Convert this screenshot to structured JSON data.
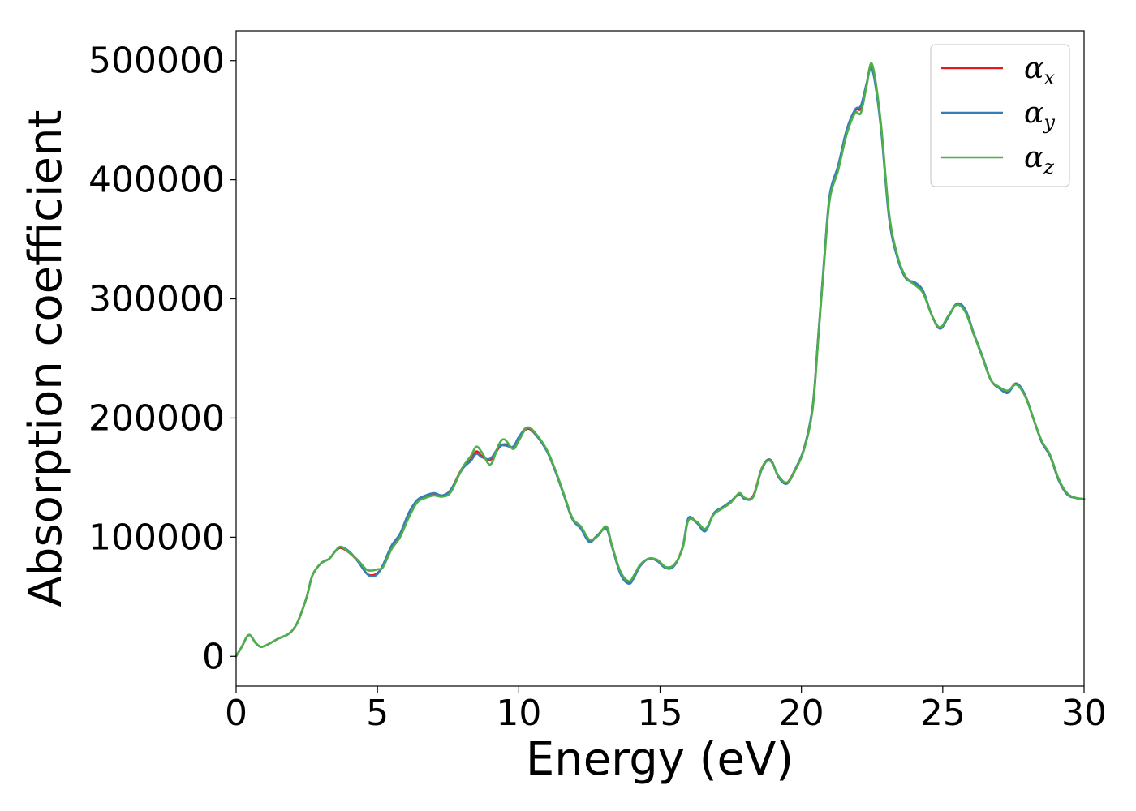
{
  "chart_data": {
    "type": "line",
    "title": "",
    "xlabel": "Energy (eV)",
    "ylabel": "Absorption coefficient",
    "xlim": [
      0,
      30
    ],
    "ylim": [
      -25000,
      525000
    ],
    "xticks": [
      0,
      5,
      10,
      15,
      20,
      25,
      30
    ],
    "xtick_labels": [
      "0",
      "5",
      "10",
      "15",
      "20",
      "25",
      "30"
    ],
    "yticks": [
      0,
      100000,
      200000,
      300000,
      400000,
      500000
    ],
    "ytick_labels": [
      "0",
      "100000",
      "200000",
      "300000",
      "400000",
      "500000"
    ],
    "grid": false,
    "legend_position": "top-right",
    "series": [
      {
        "name": "α_x",
        "color": "#e41a1c",
        "x": [
          0,
          0.2,
          0.45,
          0.7,
          0.9,
          1.2,
          1.5,
          1.8,
          2.0,
          2.2,
          2.5,
          2.7,
          3.0,
          3.3,
          3.5,
          3.7,
          4.0,
          4.3,
          4.6,
          4.8,
          5.0,
          5.2,
          5.5,
          5.8,
          6.1,
          6.4,
          6.7,
          7.0,
          7.3,
          7.6,
          8.0,
          8.3,
          8.5,
          8.7,
          9.0,
          9.3,
          9.5,
          9.8,
          10.0,
          10.3,
          10.6,
          11.0,
          11.3,
          11.6,
          11.9,
          12.2,
          12.5,
          12.8,
          13.1,
          13.3,
          13.6,
          13.9,
          14.1,
          14.3,
          14.6,
          14.9,
          15.2,
          15.5,
          15.8,
          16.0,
          16.3,
          16.6,
          16.9,
          17.2,
          17.5,
          17.8,
          18.0,
          18.3,
          18.6,
          18.9,
          19.2,
          19.5,
          19.8,
          20.1,
          20.4,
          20.6,
          20.8,
          21.0,
          21.3,
          21.6,
          21.9,
          22.1,
          22.3,
          22.5,
          22.8,
          23.1,
          23.4,
          23.7,
          24.0,
          24.3,
          24.6,
          24.9,
          25.2,
          25.5,
          25.8,
          26.1,
          26.4,
          26.7,
          27.0,
          27.3,
          27.6,
          27.9,
          28.2,
          28.5,
          28.8,
          29.1,
          29.4,
          29.7,
          30.0
        ],
        "values": [
          0,
          8000,
          18000,
          11000,
          8000,
          11000,
          15000,
          18000,
          22000,
          30000,
          50000,
          68000,
          78000,
          82000,
          88000,
          91000,
          87000,
          80000,
          70000,
          68000,
          70000,
          76000,
          92000,
          102000,
          118000,
          130000,
          134000,
          136000,
          135000,
          140000,
          158000,
          165000,
          172000,
          168000,
          165000,
          175000,
          178000,
          175000,
          183000,
          191000,
          186000,
          172000,
          155000,
          135000,
          115000,
          108000,
          97000,
          102000,
          108000,
          92000,
          70000,
          62000,
          68000,
          76000,
          82000,
          80000,
          74000,
          76000,
          92000,
          115000,
          112000,
          106000,
          120000,
          125000,
          130000,
          136000,
          132000,
          135000,
          158000,
          165000,
          150000,
          146000,
          158000,
          175000,
          210000,
          270000,
          330000,
          385000,
          410000,
          440000,
          458000,
          460000,
          480000,
          495000,
          448000,
          370000,
          335000,
          318000,
          313000,
          306000,
          287000,
          275000,
          285000,
          296000,
          290000,
          270000,
          252000,
          232000,
          225000,
          222000,
          229000,
          220000,
          200000,
          180000,
          168000,
          148000,
          136000,
          133000,
          132000
        ]
      },
      {
        "name": "α_y",
        "color": "#377eb8",
        "x": [
          0,
          0.2,
          0.45,
          0.7,
          0.9,
          1.2,
          1.5,
          1.8,
          2.0,
          2.2,
          2.5,
          2.7,
          3.0,
          3.3,
          3.5,
          3.7,
          4.0,
          4.3,
          4.6,
          4.8,
          5.0,
          5.2,
          5.5,
          5.8,
          6.1,
          6.4,
          6.7,
          7.0,
          7.3,
          7.6,
          8.0,
          8.3,
          8.5,
          8.7,
          9.0,
          9.3,
          9.5,
          9.8,
          10.0,
          10.3,
          10.6,
          11.0,
          11.3,
          11.6,
          11.9,
          12.2,
          12.5,
          12.8,
          13.1,
          13.3,
          13.6,
          13.9,
          14.1,
          14.3,
          14.6,
          14.9,
          15.2,
          15.5,
          15.8,
          16.0,
          16.3,
          16.6,
          16.9,
          17.2,
          17.5,
          17.8,
          18.0,
          18.3,
          18.6,
          18.9,
          19.2,
          19.5,
          19.8,
          20.1,
          20.4,
          20.6,
          20.8,
          21.0,
          21.3,
          21.6,
          21.9,
          22.1,
          22.3,
          22.5,
          22.8,
          23.1,
          23.4,
          23.7,
          24.0,
          24.3,
          24.6,
          24.9,
          25.2,
          25.5,
          25.8,
          26.1,
          26.4,
          26.7,
          27.0,
          27.3,
          27.6,
          27.9,
          28.2,
          28.5,
          28.8,
          29.1,
          29.4,
          29.7,
          30.0
        ],
        "values": [
          0,
          8000,
          18000,
          11000,
          8000,
          11000,
          15000,
          18000,
          22000,
          30000,
          50000,
          68000,
          78000,
          82000,
          88000,
          92000,
          88000,
          80000,
          70000,
          67000,
          69000,
          77000,
          93000,
          103000,
          120000,
          131000,
          135000,
          137000,
          135000,
          140000,
          157000,
          164000,
          170000,
          167000,
          166000,
          176000,
          177000,
          176000,
          184000,
          192000,
          186000,
          172000,
          155000,
          135000,
          115000,
          107000,
          96000,
          102000,
          107000,
          92000,
          69000,
          61000,
          67000,
          76000,
          82000,
          80000,
          74000,
          76000,
          92000,
          116000,
          112000,
          105000,
          120000,
          125000,
          130000,
          136000,
          132000,
          134000,
          157000,
          165000,
          150000,
          145000,
          158000,
          175000,
          210000,
          270000,
          332000,
          387000,
          412000,
          442000,
          459000,
          462000,
          480000,
          493000,
          446000,
          368000,
          334000,
          317000,
          314000,
          307000,
          287000,
          275000,
          285000,
          296000,
          291000,
          271000,
          252000,
          232000,
          225000,
          221000,
          229000,
          220000,
          200000,
          180000,
          168000,
          148000,
          136000,
          133000,
          132000
        ]
      },
      {
        "name": "α_z",
        "color": "#4daf4a",
        "x": [
          0,
          0.2,
          0.45,
          0.7,
          0.9,
          1.2,
          1.5,
          1.8,
          2.0,
          2.2,
          2.5,
          2.7,
          3.0,
          3.3,
          3.5,
          3.7,
          4.0,
          4.3,
          4.6,
          4.8,
          5.0,
          5.2,
          5.5,
          5.8,
          6.1,
          6.4,
          6.7,
          7.0,
          7.3,
          7.6,
          8.0,
          8.3,
          8.5,
          8.7,
          9.0,
          9.3,
          9.5,
          9.8,
          10.0,
          10.3,
          10.6,
          11.0,
          11.3,
          11.6,
          11.9,
          12.2,
          12.5,
          12.8,
          13.1,
          13.3,
          13.6,
          13.9,
          14.1,
          14.3,
          14.6,
          14.9,
          15.2,
          15.5,
          15.8,
          16.0,
          16.3,
          16.6,
          16.9,
          17.2,
          17.5,
          17.8,
          18.0,
          18.3,
          18.6,
          18.9,
          19.2,
          19.5,
          19.8,
          20.1,
          20.4,
          20.6,
          20.8,
          21.0,
          21.3,
          21.6,
          21.9,
          22.1,
          22.3,
          22.5,
          22.8,
          23.1,
          23.4,
          23.7,
          24.0,
          24.3,
          24.6,
          24.9,
          25.2,
          25.5,
          25.8,
          26.1,
          26.4,
          26.7,
          27.0,
          27.3,
          27.6,
          27.9,
          28.2,
          28.5,
          28.8,
          29.1,
          29.4,
          29.7,
          30.0
        ],
        "values": [
          0,
          8000,
          18000,
          11000,
          8000,
          11000,
          15000,
          18000,
          22000,
          30000,
          50000,
          68000,
          78000,
          82000,
          88000,
          92000,
          87000,
          81000,
          73000,
          72000,
          73000,
          75000,
          90000,
          100000,
          116000,
          129000,
          133000,
          135000,
          134000,
          138000,
          158000,
          168000,
          176000,
          171000,
          161000,
          178000,
          182000,
          174000,
          181000,
          192000,
          187000,
          173000,
          156000,
          136000,
          116000,
          109000,
          98000,
          101000,
          109000,
          93000,
          71000,
          63000,
          69000,
          77000,
          82000,
          81000,
          75000,
          77000,
          91000,
          114000,
          113000,
          107000,
          119000,
          124000,
          129000,
          137000,
          133000,
          134000,
          158000,
          164000,
          151000,
          146000,
          157000,
          174000,
          208000,
          268000,
          329000,
          383000,
          408000,
          438000,
          456000,
          456000,
          478000,
          497000,
          450000,
          372000,
          336000,
          318000,
          312000,
          305000,
          287000,
          276000,
          286000,
          295000,
          289000,
          270000,
          251000,
          232000,
          226000,
          223000,
          228000,
          219000,
          200000,
          181000,
          169000,
          149000,
          137000,
          133000,
          132000
        ]
      }
    ]
  }
}
